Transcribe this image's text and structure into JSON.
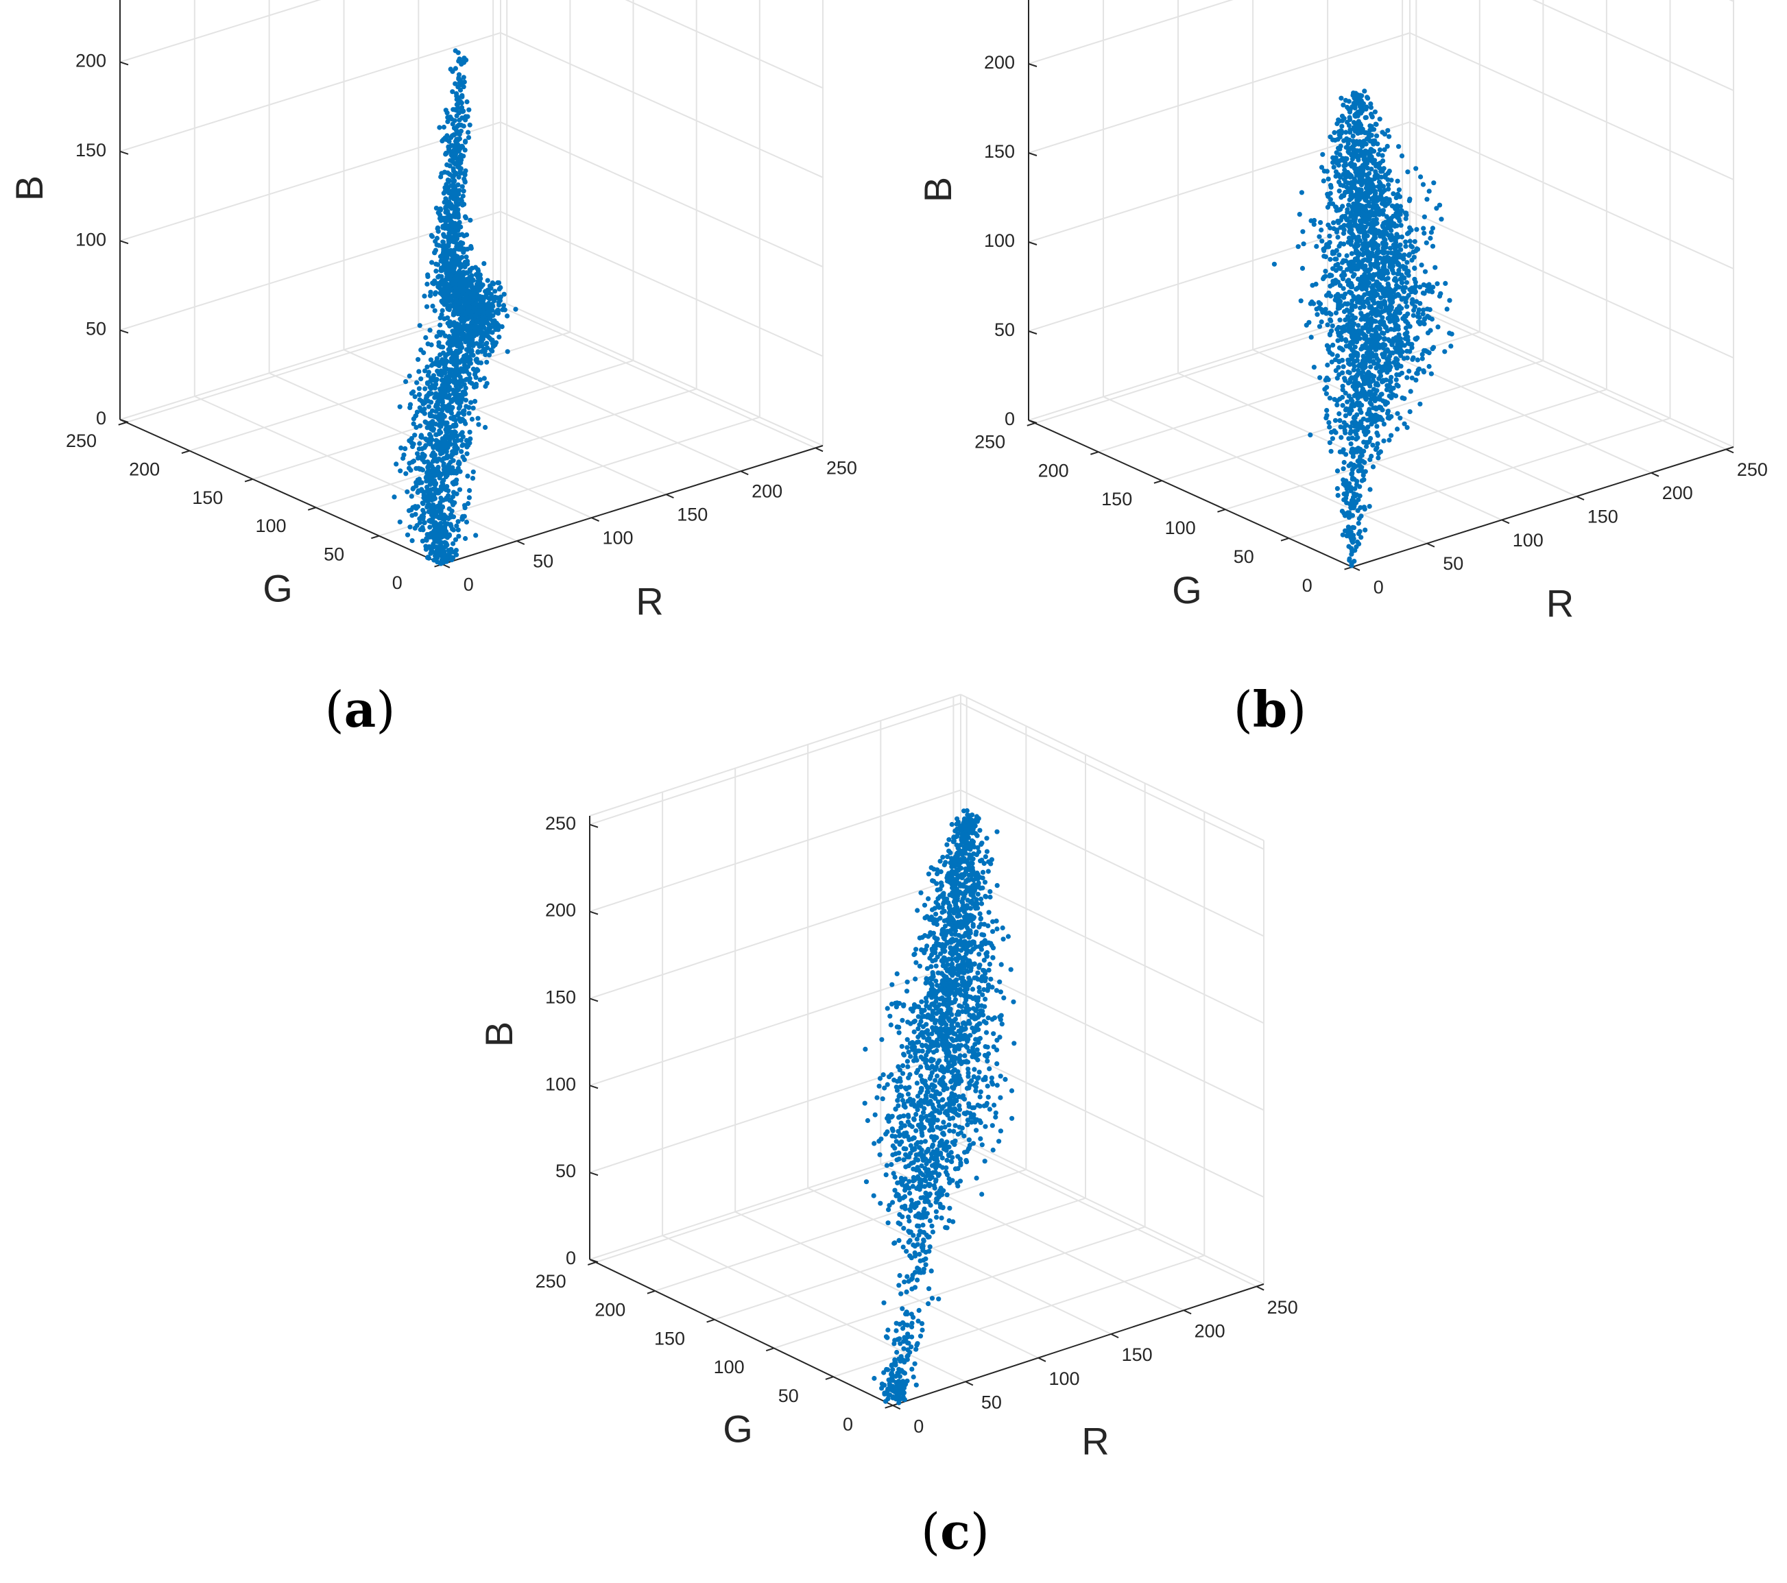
{
  "figure": {
    "marker_color": "#0072BD",
    "grid_color": "#e3e3e3",
    "axis_color": "#262626"
  },
  "chart_data": [
    {
      "id": "a",
      "type": "scatter",
      "projection": "3d",
      "caption": {
        "open": "(",
        "letter": "a",
        "close": ")"
      },
      "title": "",
      "xlabel": "R",
      "ylabel": "G",
      "zlabel": "B",
      "xlim": [
        0,
        255
      ],
      "ylim": [
        0,
        255
      ],
      "zlim": [
        0,
        255
      ],
      "xticks": [
        0,
        50,
        100,
        150,
        200,
        250
      ],
      "yticks": [
        0,
        50,
        100,
        150,
        200,
        250
      ],
      "zticks": [
        0,
        50,
        100,
        150,
        200,
        250
      ],
      "grid": true,
      "marker": "filled-circle",
      "skeleton": [
        {
          "r": 0,
          "g": 0,
          "b": 0,
          "spread": 4,
          "count": 60
        },
        {
          "r": 10,
          "g": 12,
          "b": 3,
          "spread": 6,
          "count": 140
        },
        {
          "r": 30,
          "g": 40,
          "b": 8,
          "spread": 7,
          "count": 220
        },
        {
          "r": 60,
          "g": 75,
          "b": 18,
          "spread": 8,
          "count": 260
        },
        {
          "r": 90,
          "g": 105,
          "b": 32,
          "spread": 8,
          "count": 240
        },
        {
          "r": 115,
          "g": 125,
          "b": 45,
          "spread": 8,
          "count": 220
        },
        {
          "r": 130,
          "g": 128,
          "b": 60,
          "spread": 8,
          "count": 200
        },
        {
          "r": 125,
          "g": 120,
          "b": 75,
          "spread": 8,
          "count": 180
        },
        {
          "r": 105,
          "g": 110,
          "b": 88,
          "spread": 6,
          "count": 160
        },
        {
          "r": 80,
          "g": 85,
          "b": 110,
          "spread": 5,
          "count": 150
        },
        {
          "r": 65,
          "g": 70,
          "b": 140,
          "spread": 4,
          "count": 140
        },
        {
          "r": 60,
          "g": 62,
          "b": 170,
          "spread": 3,
          "count": 110
        },
        {
          "r": 58,
          "g": 58,
          "b": 200,
          "spread": 3,
          "count": 70
        },
        {
          "r": 58,
          "g": 56,
          "b": 225,
          "spread": 2,
          "count": 30
        },
        {
          "r": 60,
          "g": 56,
          "b": 250,
          "spread": 2,
          "count": 6
        }
      ]
    },
    {
      "id": "b",
      "type": "scatter",
      "projection": "3d",
      "caption": {
        "open": "(",
        "letter": "b",
        "close": ")"
      },
      "title": "",
      "xlabel": "R",
      "ylabel": "G",
      "zlabel": "B",
      "xlim": [
        0,
        255
      ],
      "ylim": [
        0,
        255
      ],
      "zlim": [
        0,
        255
      ],
      "xticks": [
        0,
        50,
        100,
        150,
        200,
        250
      ],
      "yticks": [
        0,
        50,
        100,
        150,
        200,
        250
      ],
      "zticks": [
        0,
        50,
        100,
        150,
        200,
        250
      ],
      "grid": true,
      "marker": "filled-circle",
      "skeleton": [
        {
          "r": 0,
          "g": 0,
          "b": 0,
          "spread": 2,
          "count": 20
        },
        {
          "r": 4,
          "g": 4,
          "b": 15,
          "spread": 3,
          "count": 50
        },
        {
          "r": 8,
          "g": 8,
          "b": 35,
          "spread": 4,
          "count": 60
        },
        {
          "r": 15,
          "g": 15,
          "b": 55,
          "spread": 8,
          "count": 120
        },
        {
          "r": 28,
          "g": 22,
          "b": 75,
          "spread": 12,
          "count": 260
        },
        {
          "r": 35,
          "g": 25,
          "b": 100,
          "spread": 14,
          "count": 340
        },
        {
          "r": 38,
          "g": 25,
          "b": 125,
          "spread": 15,
          "count": 360
        },
        {
          "r": 36,
          "g": 24,
          "b": 150,
          "spread": 14,
          "count": 340
        },
        {
          "r": 30,
          "g": 22,
          "b": 175,
          "spread": 12,
          "count": 280
        },
        {
          "r": 22,
          "g": 18,
          "b": 200,
          "spread": 9,
          "count": 180
        },
        {
          "r": 14,
          "g": 12,
          "b": 225,
          "spread": 6,
          "count": 110
        },
        {
          "r": 10,
          "g": 8,
          "b": 245,
          "spread": 4,
          "count": 50
        },
        {
          "r": 10,
          "g": 6,
          "b": 258,
          "spread": 2,
          "count": 12
        }
      ]
    },
    {
      "id": "c",
      "type": "scatter",
      "projection": "3d",
      "caption": {
        "open": "(",
        "letter": "c",
        "close": ")"
      },
      "title": "",
      "xlabel": "R",
      "ylabel": "G",
      "zlabel": "B",
      "xlim": [
        0,
        255
      ],
      "ylim": [
        0,
        255
      ],
      "zlim": [
        0,
        255
      ],
      "xticks": [
        0,
        50,
        100,
        150,
        200,
        250
      ],
      "yticks": [
        0,
        50,
        100,
        150,
        200,
        250
      ],
      "zticks": [
        0,
        50,
        100,
        150,
        200,
        250
      ],
      "grid": true,
      "marker": "filled-circle",
      "skeleton": [
        {
          "r": 2,
          "g": 2,
          "b": 2,
          "spread": 4,
          "count": 90
        },
        {
          "r": 8,
          "g": 6,
          "b": 10,
          "spread": 6,
          "count": 60
        },
        {
          "r": 20,
          "g": 12,
          "b": 35,
          "spread": 5,
          "count": 30
        },
        {
          "r": 30,
          "g": 18,
          "b": 60,
          "spread": 6,
          "count": 60
        },
        {
          "r": 40,
          "g": 26,
          "b": 90,
          "spread": 10,
          "count": 200
        },
        {
          "r": 52,
          "g": 34,
          "b": 120,
          "spread": 14,
          "count": 300
        },
        {
          "r": 62,
          "g": 38,
          "b": 150,
          "spread": 14,
          "count": 320
        },
        {
          "r": 70,
          "g": 40,
          "b": 180,
          "spread": 12,
          "count": 320
        },
        {
          "r": 75,
          "g": 40,
          "b": 210,
          "spread": 10,
          "count": 280
        },
        {
          "r": 78,
          "g": 40,
          "b": 240,
          "spread": 8,
          "count": 220
        },
        {
          "r": 80,
          "g": 40,
          "b": 265,
          "spread": 6,
          "count": 150
        },
        {
          "r": 82,
          "g": 40,
          "b": 285,
          "spread": 4,
          "count": 80
        },
        {
          "r": 84,
          "g": 40,
          "b": 300,
          "spread": 3,
          "count": 30
        }
      ]
    }
  ]
}
